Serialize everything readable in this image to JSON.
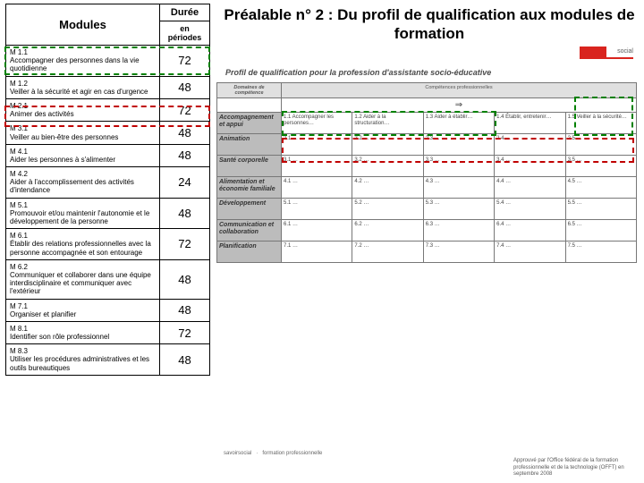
{
  "title": "Préalable n° 2 : Du profil de qualification aux modules de formation",
  "table": {
    "header_modules": "Modules",
    "header_duree": "Durée",
    "header_duree_sub": "en périodes",
    "rows": [
      {
        "code": "M 1.1",
        "text": "Accompagner des personnes dans la vie quotidienne",
        "duree": "72",
        "hl": "green"
      },
      {
        "code": "M 1.2",
        "text": "Veiller à la sécurité et agir en cas d'urgence",
        "duree": "48",
        "hl": null
      },
      {
        "code": "M 2.1",
        "text": "Animer des activités",
        "duree": "72",
        "hl": "red"
      },
      {
        "code": "M 3.1",
        "text": "Veiller au bien-être des personnes",
        "duree": "48",
        "hl": null
      },
      {
        "code": "M 4.1",
        "text": "Aider les personnes à s'alimenter",
        "duree": "48",
        "hl": null
      },
      {
        "code": "M 4.2",
        "text": "Aider à l'accomplissement des activités d'intendance",
        "duree": "24",
        "hl": null
      },
      {
        "code": "M 5.1",
        "text": "Promouvoir et/ou maintenir l'autonomie et le développement de la personne",
        "duree": "48",
        "hl": null
      },
      {
        "code": "M 6.1",
        "text": "Établir des relations professionnelles avec la personne accompagnée et son entourage",
        "duree": "72",
        "hl": null
      },
      {
        "code": "M 6.2",
        "text": "Communiquer et collaborer dans une équipe interdisciplinaire et communiquer avec l'extérieur",
        "duree": "48",
        "hl": null
      },
      {
        "code": "M 7.1",
        "text": "Organiser et planifier",
        "duree": "48",
        "hl": null
      },
      {
        "code": "M 8.1",
        "text": "Identifier son rôle professionnel",
        "duree": "72",
        "hl": null
      },
      {
        "code": "M 8.3",
        "text": "Utiliser les procédures administratives et les outils bureautiques",
        "duree": "48",
        "hl": null
      }
    ]
  },
  "profile": {
    "logo_text": "social",
    "heading": "Profil de qualification pour la profession d'assistante socio-éducative",
    "domain_header_left": "Domaines de compétence",
    "domain_header_right": "Compétences professionnelles",
    "arrow": "⇒",
    "row_labels": [
      "Accompagnement et appui",
      "Animation",
      "Santé corporelle",
      "Alimentation et économie familiale",
      "Développement",
      "Communication et collaboration",
      "Planification"
    ],
    "top_cells": [
      "1.1 Accompagner les personnes…",
      "1.2 Aider à la structuration…",
      "1.3 Aider à établir…",
      "1.4 Établir, entretenir…",
      "1.5 Veiller à la sécurité…"
    ],
    "approval": "Approuvé par l'Office fédéral de la formation professionnelle et de la technologie (OFFT) en septembre 2008"
  },
  "colors": {
    "green": "#008000",
    "red": "#c00000",
    "grid_border": "#777777",
    "row_label_bg": "#bcbcbc"
  }
}
